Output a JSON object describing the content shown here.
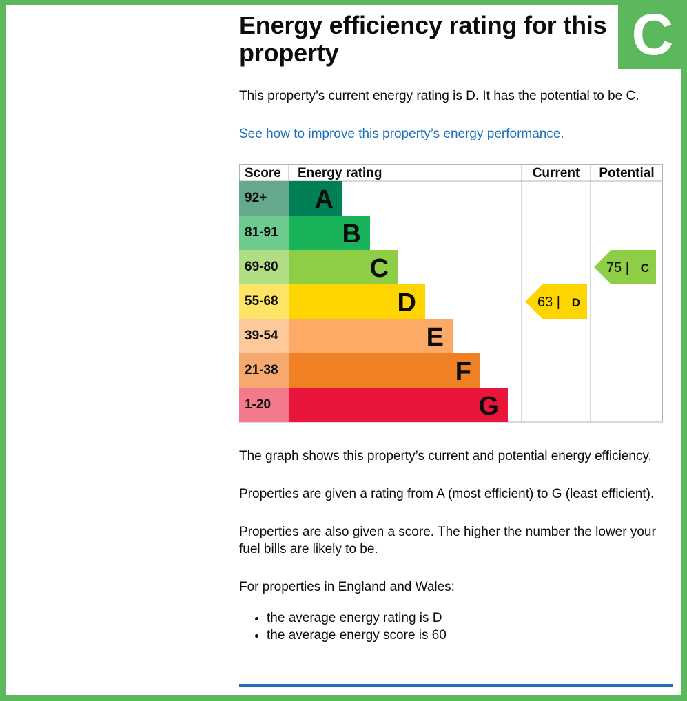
{
  "badge": {
    "letter": "C",
    "color": "#5cb85c"
  },
  "heading": "Energy efficiency rating for this property",
  "intro": "This property’s current energy rating is D. It has the potential to be C.",
  "improve_link": "See how to improve this property’s energy performance.",
  "chart_data": {
    "type": "bar",
    "columns": [
      "Score",
      "Energy rating",
      "Current",
      "Potential"
    ],
    "bands": [
      {
        "letter": "A",
        "score": "92+",
        "color": "#008054",
        "score_bg": "#64a98b"
      },
      {
        "letter": "B",
        "score": "81-91",
        "color": "#19b459",
        "score_bg": "#6ecb8f"
      },
      {
        "letter": "C",
        "score": "69-80",
        "color": "#8dce46",
        "score_bg": "#b1dd85"
      },
      {
        "letter": "D",
        "score": "55-68",
        "color": "#ffd500",
        "score_bg": "#ffe565"
      },
      {
        "letter": "E",
        "score": "39-54",
        "color": "#fcaa65",
        "score_bg": "#fdc99a"
      },
      {
        "letter": "F",
        "score": "21-38",
        "color": "#ef8023",
        "score_bg": "#f5a96f"
      },
      {
        "letter": "G",
        "score": "1-20",
        "color": "#e9153b",
        "score_bg": "#f37a8d"
      }
    ],
    "current": {
      "score": 63,
      "letter": "D",
      "label": "63 |",
      "color": "#ffd500"
    },
    "potential": {
      "score": 75,
      "letter": "C",
      "label": "75 |",
      "color": "#8dce46"
    }
  },
  "explanation": [
    "The graph shows this property’s current and potential energy efficiency.",
    "Properties are given a rating from A (most efficient) to G (least efficient).",
    "Properties are also given a score. The higher the number the lower your fuel bills are likely to be.",
    "For properties in England and Wales:"
  ],
  "averages": [
    "the average energy rating is D",
    "the average energy score is 60"
  ]
}
